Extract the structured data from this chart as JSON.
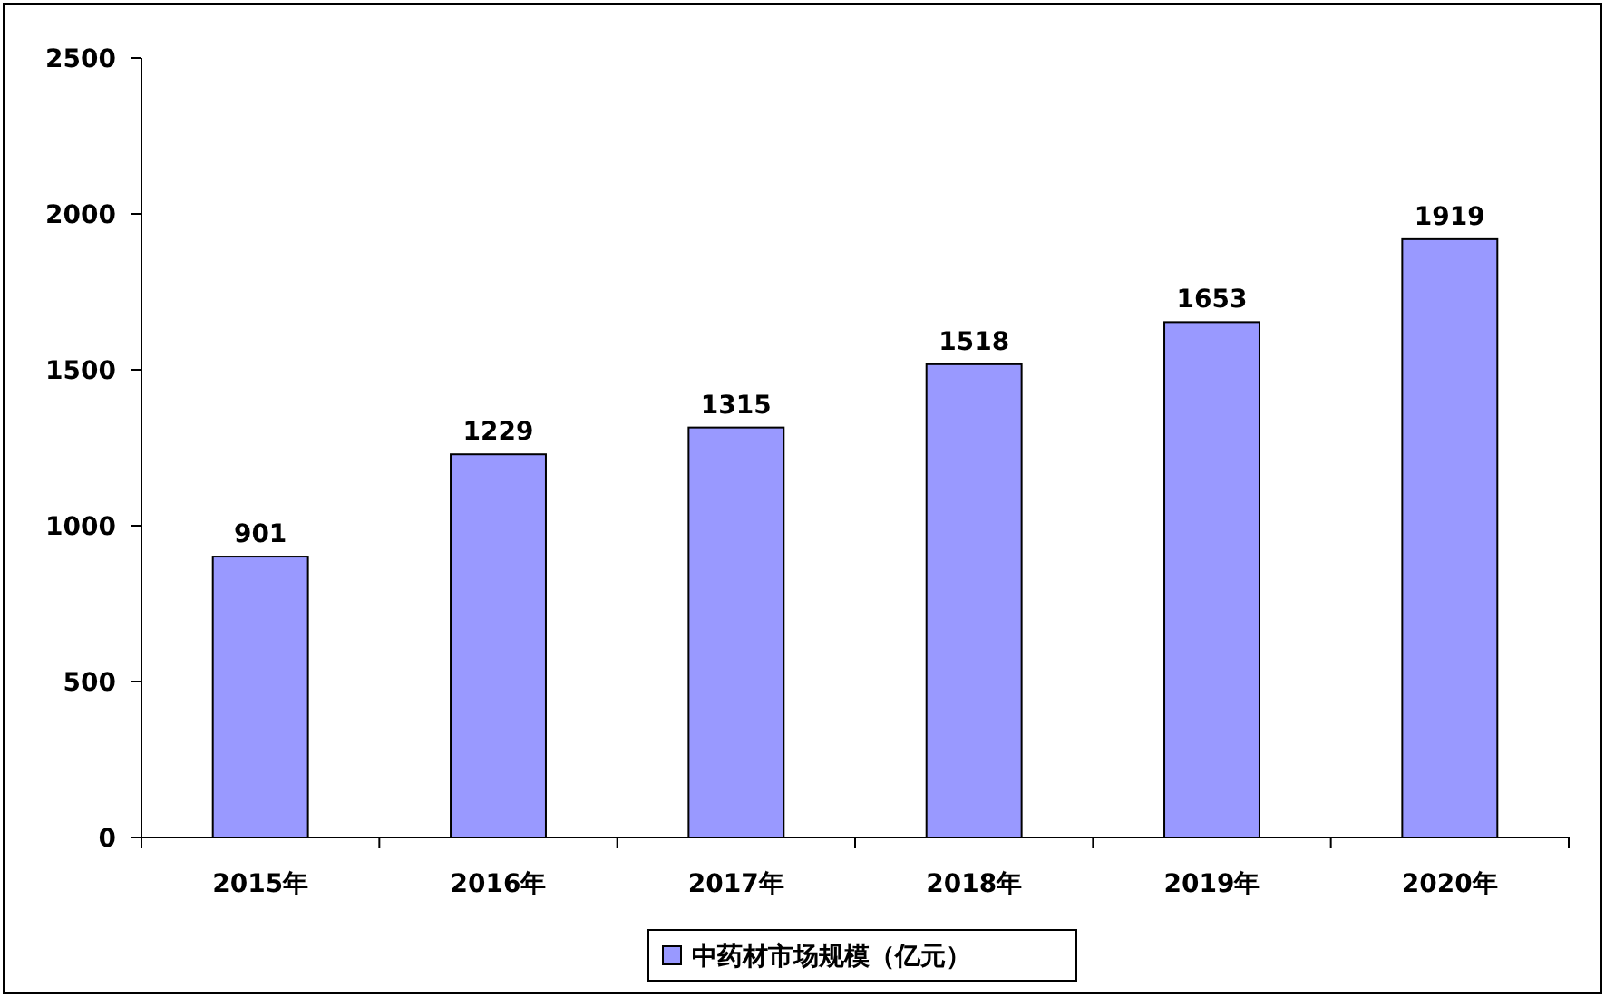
{
  "chart_data": {
    "type": "bar",
    "categories": [
      "2015年",
      "2016年",
      "2017年",
      "2018年",
      "2019年",
      "2020年"
    ],
    "series": [
      {
        "name": "中药材市场规模（亿元）",
        "color": "#9999ff",
        "values": [
          901,
          1229,
          1315,
          1518,
          1653,
          1919
        ]
      }
    ],
    "ylim": [
      0,
      2500
    ],
    "yticks": [
      0,
      500,
      1000,
      1500,
      2000,
      2500
    ],
    "data_labels": true,
    "legend": "bottom",
    "grid": false
  }
}
